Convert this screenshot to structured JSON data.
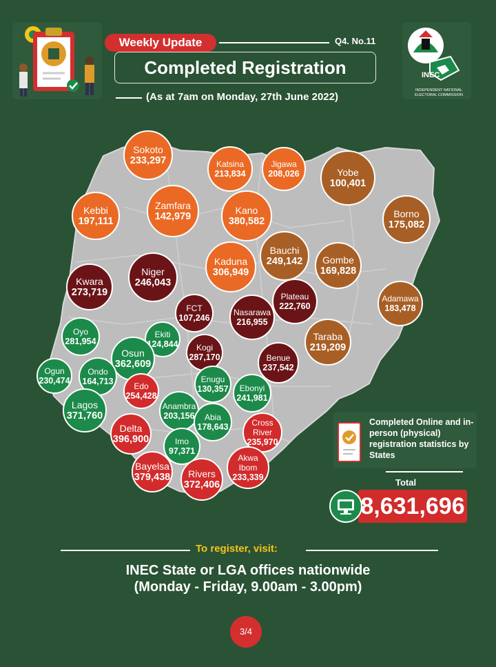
{
  "header": {
    "badge": "Weekly Update",
    "issue": "Q4. No.11",
    "title": "Completed Registration",
    "subtitle": "(As at 7am on Monday, 27th June 2022)"
  },
  "logo": {
    "word": "INEC",
    "caption": "INDEPENDENT NATIONAL ELECTORAL COMMISSION"
  },
  "colors": {
    "background": "#2a5235",
    "orange": "#ea6a25",
    "brown": "#a85f25",
    "maroon": "#6a1417",
    "green": "#1c8a4a",
    "red": "#d22b2b"
  },
  "states": [
    {
      "name": "Sokoto",
      "value": "233,297",
      "color": "orange"
    },
    {
      "name": "Katsina",
      "value": "213,834",
      "color": "orange"
    },
    {
      "name": "Jigawa",
      "value": "208,026",
      "color": "orange"
    },
    {
      "name": "Yobe",
      "value": "100,401",
      "color": "brown"
    },
    {
      "name": "Kebbi",
      "value": "197,111",
      "color": "orange"
    },
    {
      "name": "Zamfara",
      "value": "142,979",
      "color": "orange"
    },
    {
      "name": "Kano",
      "value": "380,582",
      "color": "orange"
    },
    {
      "name": "Borno",
      "value": "175,082",
      "color": "brown"
    },
    {
      "name": "Bauchi",
      "value": "249,142",
      "color": "brown"
    },
    {
      "name": "Kaduna",
      "value": "306,949",
      "color": "orange"
    },
    {
      "name": "Gombe",
      "value": "169,828",
      "color": "brown"
    },
    {
      "name": "Niger",
      "value": "246,043",
      "color": "maroon"
    },
    {
      "name": "Kwara",
      "value": "273,719",
      "color": "maroon"
    },
    {
      "name": "Adamawa",
      "value": "183,478",
      "color": "brown"
    },
    {
      "name": "Plateau",
      "value": "222,760",
      "color": "maroon"
    },
    {
      "name": "FCT",
      "value": "107,246",
      "color": "maroon"
    },
    {
      "name": "Nasarawa",
      "value": "216,955",
      "color": "maroon"
    },
    {
      "name": "Oyo",
      "value": "281,954",
      "color": "green"
    },
    {
      "name": "Ekiti",
      "value": "124,844",
      "color": "green"
    },
    {
      "name": "Taraba",
      "value": "219,209",
      "color": "brown"
    },
    {
      "name": "Kogi",
      "value": "287,170",
      "color": "maroon"
    },
    {
      "name": "Osun",
      "value": "362,609",
      "color": "green"
    },
    {
      "name": "Benue",
      "value": "237,542",
      "color": "maroon"
    },
    {
      "name": "Ogun",
      "value": "230,474",
      "color": "green"
    },
    {
      "name": "Ondo",
      "value": "164,713",
      "color": "green"
    },
    {
      "name": "Enugu",
      "value": "130,357",
      "color": "green"
    },
    {
      "name": "Ebonyi",
      "value": "241,981",
      "color": "green"
    },
    {
      "name": "Edo",
      "value": "254,428",
      "color": "red"
    },
    {
      "name": "Lagos",
      "value": "371,760",
      "color": "green"
    },
    {
      "name": "Anambra",
      "value": "203,156",
      "color": "green"
    },
    {
      "name": "Abia",
      "value": "178,643",
      "color": "green"
    },
    {
      "name": "Cross River",
      "value": "235,970",
      "color": "red"
    },
    {
      "name": "Delta",
      "value": "396,900",
      "color": "red"
    },
    {
      "name": "Imo",
      "value": "97,371",
      "color": "green"
    },
    {
      "name": "Akwa Ibom",
      "value": "233,339",
      "color": "red"
    },
    {
      "name": "Bayelsa",
      "value": "379,438",
      "color": "red"
    },
    {
      "name": "Rivers",
      "value": "372,406",
      "color": "red"
    }
  ],
  "legend": {
    "text": "Completed Online and in-person (physical) registration statistics by States"
  },
  "total": {
    "label": "Total",
    "value": "8,631,696"
  },
  "footer": {
    "register": "To register, visit:",
    "line1": "INEC State or LGA offices nationwide",
    "line2": "(Monday - Friday, 9.00am - 3.00pm)",
    "page": "3/4"
  }
}
